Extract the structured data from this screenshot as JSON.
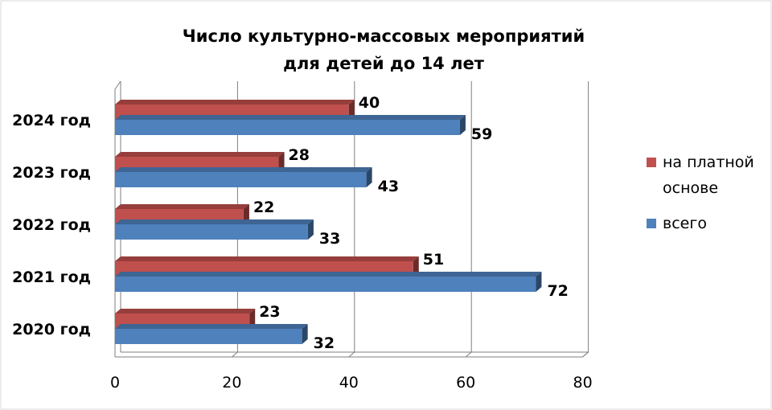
{
  "chart_data": {
    "type": "bar",
    "orientation": "horizontal",
    "style": "3d",
    "title_lines": [
      "Число культурно-массовых мероприятий",
      "для детей до 14 лет"
    ],
    "categories": [
      "2020 год",
      "2021 год",
      "2022 год",
      "2023 год",
      "2024 год"
    ],
    "series": [
      {
        "name": "на платной основе",
        "values": [
          23,
          51,
          22,
          28,
          40
        ],
        "color": "#c0504d"
      },
      {
        "name": "всего",
        "values": [
          32,
          72,
          33,
          43,
          59
        ],
        "color": "#4f81bd"
      }
    ],
    "xlim": [
      0,
      80
    ],
    "x_ticks": [
      "0",
      "20",
      "40",
      "60",
      "80"
    ],
    "grid": true,
    "data_labels": true,
    "legend": {
      "position": "right",
      "items": [
        "на платной основе",
        "всего"
      ]
    }
  }
}
